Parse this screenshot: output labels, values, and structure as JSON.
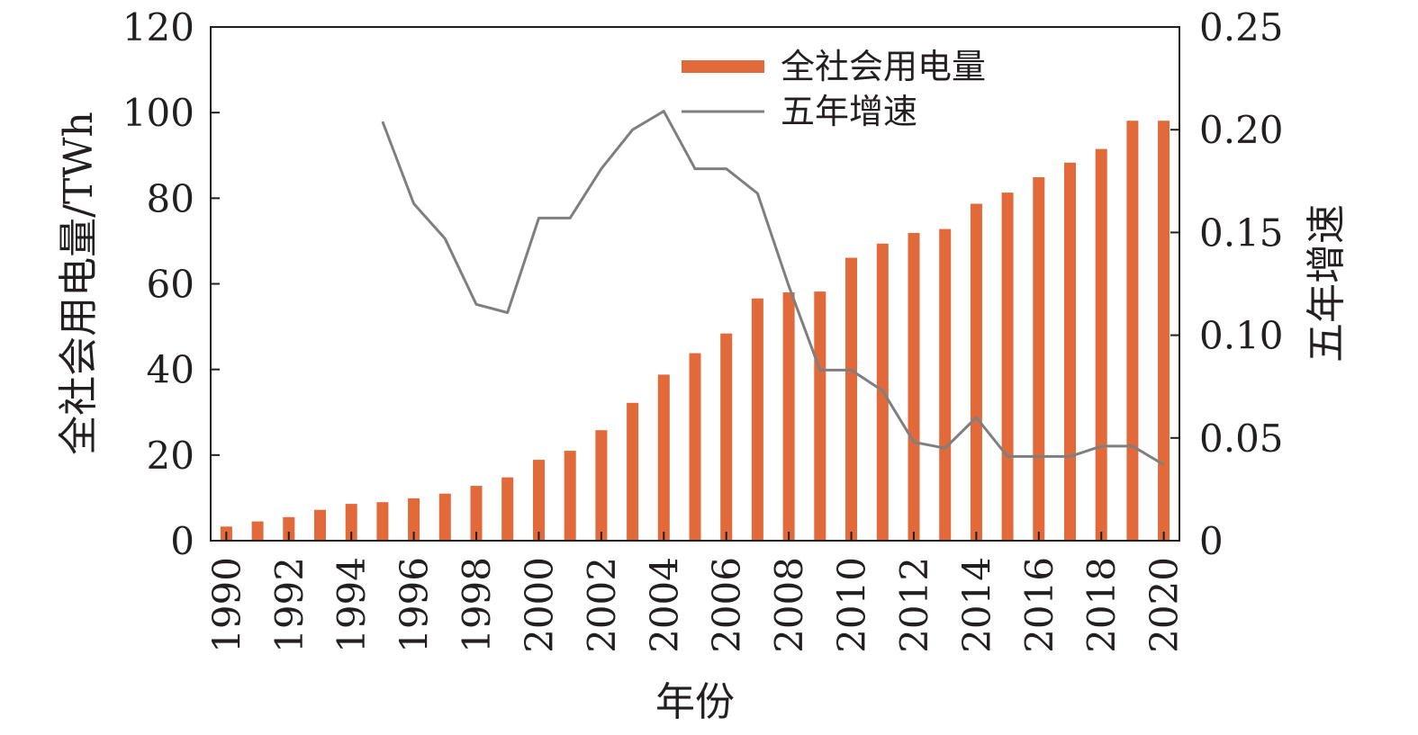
{
  "chart_data": {
    "type": "bar",
    "xlabel": "年份",
    "ylabel_left": "全社会用电量/TWh",
    "ylabel_right": "五年增速",
    "ylim_left": [
      0,
      120
    ],
    "ylim_right": [
      0,
      0.25
    ],
    "yticks_left": [
      "0",
      "20",
      "40",
      "60",
      "80",
      "100",
      "120"
    ],
    "yticks_right": [
      "0",
      "0.05",
      "0.10",
      "0.15",
      "0.20",
      "0.25"
    ],
    "xticks": [
      "1990",
      "1992",
      "1994",
      "1996",
      "1998",
      "2000",
      "2002",
      "2004",
      "2006",
      "2008",
      "2010",
      "2012",
      "2014",
      "2016",
      "2018",
      "2020"
    ],
    "legend_position": "top-center",
    "grid": false,
    "colors": {
      "bar": "#e2693a",
      "line": "#7f7f7f",
      "axis": "#231f20"
    },
    "categories": [
      1990,
      1991,
      1992,
      1993,
      1994,
      1995,
      1996,
      1997,
      1998,
      1999,
      2000,
      2001,
      2002,
      2003,
      2004,
      2005,
      2006,
      2007,
      2008,
      2009,
      2010,
      2011,
      2012,
      2013,
      2014,
      2015,
      2016,
      2017,
      2018,
      2019,
      2020
    ],
    "series": [
      {
        "name": "全社会用电量",
        "type": "bar",
        "axis": "left",
        "values": [
          3.3,
          4.5,
          5.5,
          7.2,
          8.6,
          9.0,
          9.9,
          11.0,
          12.8,
          14.8,
          18.9,
          21.0,
          25.8,
          32.2,
          38.8,
          43.8,
          48.4,
          56.6,
          58.0,
          58.2,
          66.1,
          69.4,
          71.9,
          72.8,
          78.7,
          81.3,
          84.9,
          88.3,
          91.5,
          98.1,
          98.1
        ]
      },
      {
        "name": "五年增速",
        "type": "line",
        "axis": "right",
        "values": [
          null,
          null,
          null,
          null,
          null,
          0.204,
          0.164,
          0.147,
          0.115,
          0.111,
          0.157,
          0.157,
          0.181,
          0.2,
          0.209,
          0.181,
          0.181,
          0.169,
          0.124,
          0.083,
          0.083,
          0.073,
          0.048,
          0.045,
          0.06,
          0.041,
          0.041,
          0.041,
          0.046,
          0.046,
          0.037
        ]
      }
    ]
  }
}
